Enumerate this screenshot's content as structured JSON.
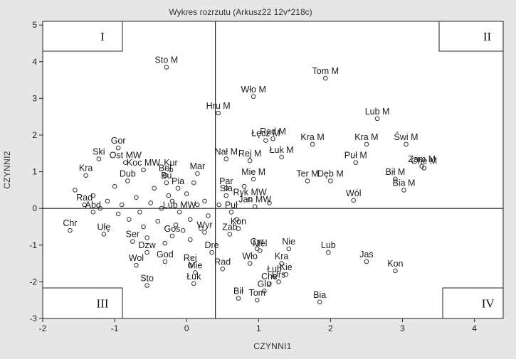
{
  "chart_data": {
    "type": "scatter",
    "title": "Wykres rozrzutu (Arkusz22 12v*218c)",
    "xlabel": "CZYNNI1",
    "ylabel": "CZYNNI2",
    "xlim": [
      -2,
      4.4
    ],
    "ylim": [
      -3,
      5.1
    ],
    "xticks": [
      -2,
      -1,
      0,
      1,
      2,
      3,
      4
    ],
    "yticks": [
      -3,
      -2,
      -1,
      0,
      1,
      2,
      3,
      4,
      5
    ],
    "reference_lines": {
      "x": 0.4,
      "y": 0
    },
    "grid": false,
    "quadrant_labels": [
      "I",
      "II",
      "III",
      "IV"
    ],
    "labeled_points": [
      {
        "label": "Sto M",
        "x": -0.28,
        "y": 3.85
      },
      {
        "label": "Tom M",
        "x": 1.93,
        "y": 3.55
      },
      {
        "label": "Wło M",
        "x": 0.93,
        "y": 3.05
      },
      {
        "label": "Hru M",
        "x": 0.44,
        "y": 2.6
      },
      {
        "label": "Lub M",
        "x": 2.65,
        "y": 2.45
      },
      {
        "label": "Rad M",
        "x": 1.2,
        "y": 1.9
      },
      {
        "label": "Łęcz M",
        "x": 1.1,
        "y": 1.85
      },
      {
        "label": "Łuk M",
        "x": 1.32,
        "y": 1.4
      },
      {
        "label": "Kra M",
        "x": 1.75,
        "y": 1.75
      },
      {
        "label": "Kra M",
        "x": 2.5,
        "y": 1.75
      },
      {
        "label": "Świ M",
        "x": 3.05,
        "y": 1.75
      },
      {
        "label": "Nał M",
        "x": 0.55,
        "y": 1.35
      },
      {
        "label": "Rej M",
        "x": 0.88,
        "y": 1.3
      },
      {
        "label": "Puł M",
        "x": 2.35,
        "y": 1.25
      },
      {
        "label": "Zam M",
        "x": 3.27,
        "y": 1.15
      },
      {
        "label": "Che M",
        "x": 3.3,
        "y": 1.1
      },
      {
        "label": "Ter M",
        "x": 1.68,
        "y": 0.75
      },
      {
        "label": "Dęb M",
        "x": 2.0,
        "y": 0.75
      },
      {
        "label": "Bił M",
        "x": 2.9,
        "y": 0.8
      },
      {
        "label": "Bia M",
        "x": 3.02,
        "y": 0.5
      },
      {
        "label": "Mie M",
        "x": 0.93,
        "y": 0.8
      },
      {
        "label": "Wól",
        "x": 2.32,
        "y": 0.22
      },
      {
        "label": "Gor",
        "x": -0.95,
        "y": 1.65
      },
      {
        "label": "Ski",
        "x": -1.22,
        "y": 1.35
      },
      {
        "label": "Ost MW",
        "x": -0.85,
        "y": 1.25
      },
      {
        "label": "Kur",
        "x": -0.22,
        "y": 1.05
      },
      {
        "label": "Mar",
        "x": 0.15,
        "y": 0.95
      },
      {
        "label": "Kra",
        "x": -1.4,
        "y": 0.9
      },
      {
        "label": "Dub",
        "x": -0.82,
        "y": 0.75
      },
      {
        "label": "Rad",
        "x": -1.42,
        "y": 0.1
      },
      {
        "label": "Abd",
        "x": -1.3,
        "y": -0.1
      },
      {
        "label": "Chr",
        "x": -1.62,
        "y": -0.6
      },
      {
        "label": "Ułę",
        "x": -1.15,
        "y": -0.7
      },
      {
        "label": "Ser",
        "x": -0.75,
        "y": -0.9
      },
      {
        "label": "Dzw",
        "x": -0.55,
        "y": -1.2
      },
      {
        "label": "Wol",
        "x": -0.7,
        "y": -1.55
      },
      {
        "label": "God",
        "x": -0.3,
        "y": -1.45
      },
      {
        "label": "Sto",
        "x": -0.55,
        "y": -2.1
      },
      {
        "label": "Gos",
        "x": -0.2,
        "y": -0.75
      },
      {
        "label": "Wyr",
        "x": 0.25,
        "y": -0.65
      },
      {
        "label": "Dre",
        "x": 0.35,
        "y": -1.2
      },
      {
        "label": "Rej",
        "x": 0.05,
        "y": -1.55
      },
      {
        "label": "Mie",
        "x": 0.12,
        "y": -1.75
      },
      {
        "label": "Łuk",
        "x": 0.1,
        "y": -2.05
      },
      {
        "label": "Rad",
        "x": 0.5,
        "y": -1.65
      },
      {
        "label": "Bił",
        "x": 0.72,
        "y": -2.45
      },
      {
        "label": "Tom",
        "x": 0.98,
        "y": -2.5
      },
      {
        "label": "Glu",
        "x": 1.08,
        "y": -2.25
      },
      {
        "label": "Che",
        "x": 1.15,
        "y": -2.05
      },
      {
        "label": "Urs",
        "x": 1.28,
        "y": -2.0
      },
      {
        "label": "Bia",
        "x": 1.85,
        "y": -2.55
      },
      {
        "label": "Kon",
        "x": 0.72,
        "y": -0.55
      },
      {
        "label": "Zab",
        "x": 0.6,
        "y": -0.7
      },
      {
        "label": "Nie",
        "x": 1.42,
        "y": -1.1
      },
      {
        "label": "Kra",
        "x": 1.32,
        "y": -1.5
      },
      {
        "label": "Wło",
        "x": 0.88,
        "y": -1.5
      },
      {
        "label": "Cyr",
        "x": 0.98,
        "y": -1.1
      },
      {
        "label": "Mel",
        "x": 1.02,
        "y": -1.15
      },
      {
        "label": "Lub",
        "x": 1.97,
        "y": -1.2
      },
      {
        "label": "Jas",
        "x": 2.5,
        "y": -1.45
      },
      {
        "label": "Kon",
        "x": 2.9,
        "y": -1.7
      },
      {
        "label": "Łub",
        "x": 1.22,
        "y": -1.85
      },
      {
        "label": "Kie",
        "x": 1.38,
        "y": -1.8
      },
      {
        "label": "Pia",
        "x": -0.12,
        "y": 0.55
      },
      {
        "label": "Sła",
        "x": 0.55,
        "y": 0.35
      },
      {
        "label": "Ryk MW",
        "x": 0.88,
        "y": 0.25
      },
      {
        "label": "Jan MW",
        "x": 0.95,
        "y": 0.05
      },
      {
        "label": "Puł",
        "x": 0.62,
        "y": -0.1
      },
      {
        "label": "Bel",
        "x": -0.3,
        "y": 0.9
      },
      {
        "label": "Par",
        "x": 0.55,
        "y": 0.55
      },
      {
        "label": "Koc MW",
        "x": -0.6,
        "y": 1.05
      },
      {
        "label": "Bu",
        "x": -0.28,
        "y": 0.7
      },
      {
        "label": "Lub MW",
        "x": -0.1,
        "y": -0.1
      }
    ],
    "unlabeled_points": [
      {
        "x": -1.55,
        "y": 0.5
      },
      {
        "x": -1.3,
        "y": 0.35
      },
      {
        "x": -1.1,
        "y": 0.2
      },
      {
        "x": -0.9,
        "y": 0.1
      },
      {
        "x": -0.7,
        "y": 0.3
      },
      {
        "x": -0.5,
        "y": 0.15
      },
      {
        "x": -0.35,
        "y": 0.0
      },
      {
        "x": -0.2,
        "y": 0.2
      },
      {
        "x": 0.0,
        "y": 0.4
      },
      {
        "x": 0.15,
        "y": 0.1
      },
      {
        "x": 0.3,
        "y": -0.2
      },
      {
        "x": -0.8,
        "y": -0.3
      },
      {
        "x": -0.6,
        "y": -0.5
      },
      {
        "x": -0.4,
        "y": -0.35
      },
      {
        "x": -0.15,
        "y": -0.45
      },
      {
        "x": 0.05,
        "y": -0.3
      },
      {
        "x": 0.2,
        "y": -0.55
      },
      {
        "x": -1.0,
        "y": 0.6
      },
      {
        "x": -0.25,
        "y": 0.35
      },
      {
        "x": 0.1,
        "y": 0.7
      },
      {
        "x": -0.05,
        "y": -0.6
      },
      {
        "x": -0.45,
        "y": 0.55
      },
      {
        "x": -0.65,
        "y": -0.1
      },
      {
        "x": 0.25,
        "y": 0.2
      },
      {
        "x": -1.2,
        "y": 0.0
      },
      {
        "x": -0.95,
        "y": -0.15
      },
      {
        "x": 0.45,
        "y": 0.1
      },
      {
        "x": 0.7,
        "y": -0.3
      },
      {
        "x": 0.8,
        "y": 0.6
      },
      {
        "x": 1.15,
        "y": 0.15
      },
      {
        "x": -0.55,
        "y": -0.8
      },
      {
        "x": -0.3,
        "y": -0.95
      },
      {
        "x": 0.05,
        "y": -0.85
      }
    ]
  }
}
